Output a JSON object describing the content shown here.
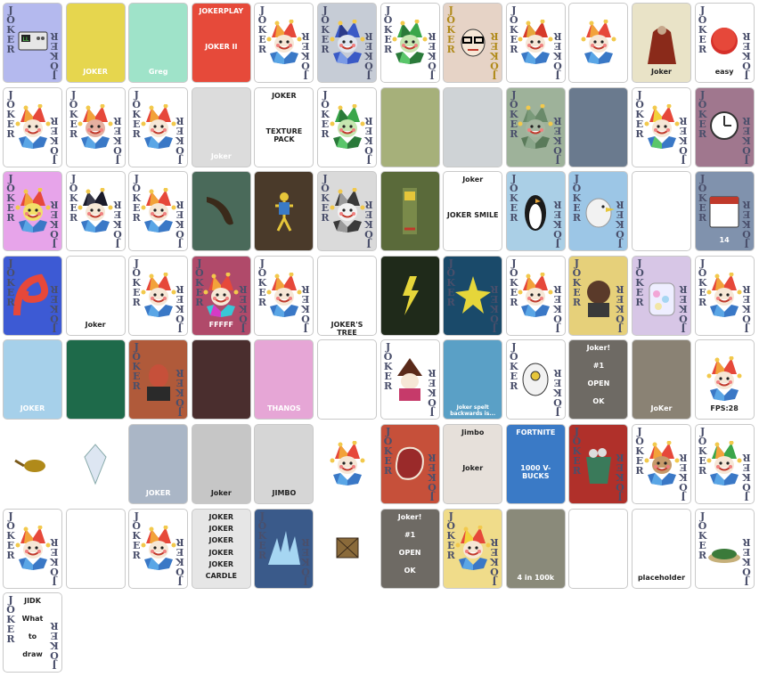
{
  "card_label": "JOKER",
  "cards": [
    {
      "name": "joker-card-1",
      "bg": "#b4b9ee",
      "style": "label",
      "icon": "clock-device"
    },
    {
      "name": "joker-card-2",
      "bg": "#e6d64e",
      "style": "scene",
      "icon": "jester-chair",
      "texts": [
        "JOKER"
      ]
    },
    {
      "name": "joker-card-3",
      "bg": "#9fe3c9",
      "style": "scene",
      "icon": "jester-greg",
      "texts": [
        "Greg"
      ]
    },
    {
      "name": "joker-card-4",
      "bg": "#e64a3a",
      "style": "scene",
      "icon": "jester-poster",
      "texts": [
        "JOKERPLAY",
        "JOKER II"
      ]
    },
    {
      "name": "joker-card-5",
      "bg": "#ffffff",
      "style": "label",
      "icon": "jester"
    },
    {
      "name": "joker-card-6",
      "bg": "#c6ccd6",
      "style": "label",
      "icon": "jester-blue"
    },
    {
      "name": "joker-card-7",
      "bg": "#ffffff",
      "style": "label",
      "icon": "jester-green"
    },
    {
      "name": "joker-card-8",
      "bg": "#e6d3c6",
      "style": "label-gold",
      "icon": "nerd-face"
    },
    {
      "name": "joker-card-9",
      "bg": "#ffffff",
      "style": "label",
      "icon": "jester-hat"
    },
    {
      "name": "joker-card-10",
      "bg": "#ffffff",
      "style": "plain",
      "icon": "jester-bust"
    },
    {
      "name": "joker-card-11",
      "bg": "#e9e3c7",
      "style": "scene",
      "icon": "cloaked-figure",
      "texts": [
        "Joker"
      ]
    },
    {
      "name": "joker-card-12",
      "bg": "#ffffff",
      "style": "label",
      "icon": "easy-button",
      "texts": [
        "easy"
      ]
    },
    {
      "name": "joker-card-13",
      "bg": "#ffffff",
      "style": "label",
      "icon": "jester-red"
    },
    {
      "name": "joker-card-14",
      "bg": "#ffffff",
      "style": "label",
      "icon": "jester-face"
    },
    {
      "name": "joker-card-15",
      "bg": "#ffffff",
      "style": "label",
      "icon": "jester-smile"
    },
    {
      "name": "joker-card-16",
      "bg": "#dcdcdc",
      "style": "scene",
      "icon": "band-photo",
      "texts": [
        "Joker"
      ]
    },
    {
      "name": "joker-card-17",
      "bg": "#ffffff",
      "style": "scene",
      "icon": "jester-logo",
      "texts": [
        "JOKER",
        "TEXTURE PACK"
      ]
    },
    {
      "name": "joker-card-18",
      "bg": "#ffffff",
      "style": "label",
      "icon": "jester-green"
    },
    {
      "name": "joker-card-19",
      "bg": "#a6b07a",
      "style": "scene",
      "icon": "jester-door"
    },
    {
      "name": "joker-card-20",
      "bg": "#cfd3d6",
      "style": "scene",
      "icon": "man-face"
    },
    {
      "name": "joker-card-21",
      "bg": "#9eb29a",
      "style": "label",
      "icon": "jester-dim"
    },
    {
      "name": "joker-card-22",
      "bg": "#6a7a8e",
      "style": "scene",
      "icon": "street-photo"
    },
    {
      "name": "joker-card-23",
      "bg": "#ffffff",
      "style": "label",
      "icon": "jester-rainbow"
    },
    {
      "name": "joker-card-24",
      "bg": "#a0778e",
      "style": "label",
      "icon": "wall-clock"
    },
    {
      "name": "joker-card-25",
      "bg": "#e7a4ea",
      "style": "label",
      "icon": "jester-goofy"
    },
    {
      "name": "joker-card-26",
      "bg": "#ffffff",
      "style": "label",
      "icon": "police-jester"
    },
    {
      "name": "joker-card-27",
      "bg": "#ffffff",
      "style": "label",
      "icon": "jester-beard"
    },
    {
      "name": "joker-card-28",
      "bg": "#4a6a5a",
      "style": "scene",
      "icon": "banana"
    },
    {
      "name": "joker-card-29",
      "bg": "#4a3a2a",
      "style": "scene",
      "icon": "stick-figure"
    },
    {
      "name": "joker-card-30",
      "bg": "#dadada",
      "style": "label",
      "icon": "jester-bw"
    },
    {
      "name": "joker-card-31",
      "bg": "#5a6a3a",
      "style": "scene",
      "icon": "pillar"
    },
    {
      "name": "joker-card-32",
      "bg": "#ffffff",
      "style": "scene",
      "icon": "jester-pills",
      "texts": [
        "Joker",
        "JOKER SMILE"
      ]
    },
    {
      "name": "joker-card-33",
      "bg": "#aacfe6",
      "style": "label",
      "icon": "penguin"
    },
    {
      "name": "joker-card-34",
      "bg": "#9cc6e6",
      "style": "label",
      "icon": "seagull"
    },
    {
      "name": "joker-card-35",
      "bg": "#ffffff",
      "style": "scene",
      "icon": "jester-smoke"
    },
    {
      "name": "joker-card-36",
      "bg": "#8092ad",
      "style": "label",
      "icon": "calendar",
      "texts": [
        "14"
      ]
    },
    {
      "name": "joker-card-37",
      "bg": "#3d5ad4",
      "style": "label",
      "icon": "swirl"
    },
    {
      "name": "joker-card-38",
      "bg": "#ffffff",
      "style": "scene",
      "icon": "alarm-clock",
      "texts": [
        "Joker"
      ]
    },
    {
      "name": "joker-card-39",
      "bg": "#ffffff",
      "style": "label",
      "icon": "jester-sad"
    },
    {
      "name": "joker-card-40",
      "bg": "#b04a6a",
      "style": "label",
      "icon": "jester-glitch",
      "texts": [
        "FFFFF"
      ]
    },
    {
      "name": "joker-card-41",
      "bg": "#ffffff",
      "style": "label",
      "icon": "jester-blue2"
    },
    {
      "name": "joker-card-42",
      "bg": "#ffffff",
      "style": "scene",
      "icon": "family-tree",
      "texts": [
        "JOKER'S TREE"
      ]
    },
    {
      "name": "joker-card-43",
      "bg": "#1f2a1a",
      "style": "scene",
      "icon": "lightning"
    },
    {
      "name": "joker-card-44",
      "bg": "#1a4a6a",
      "style": "label",
      "icon": "yellow-star"
    },
    {
      "name": "joker-card-45",
      "bg": "#ffffff",
      "style": "label",
      "icon": "jester-many"
    },
    {
      "name": "joker-card-46",
      "bg": "#e6d07a",
      "style": "label",
      "icon": "man-photo"
    },
    {
      "name": "joker-card-47",
      "bg": "#d7c6e6",
      "style": "label",
      "icon": "candy-jar"
    },
    {
      "name": "joker-card-48",
      "bg": "#ffffff",
      "style": "label",
      "icon": "jester-gray"
    },
    {
      "name": "joker-card-49",
      "bg": "#a6d0ea",
      "style": "scene",
      "icon": "man-cartoon",
      "texts": [
        "JOKER"
      ]
    },
    {
      "name": "joker-card-50",
      "bg": "#1e6a4a",
      "style": "scene",
      "icon": "ornament-card"
    },
    {
      "name": "joker-card-51",
      "bg": "#b05a3a",
      "style": "label",
      "icon": "red-man"
    },
    {
      "name": "joker-card-52",
      "bg": "#4a2e2e",
      "style": "scene",
      "icon": "code-text"
    },
    {
      "name": "joker-card-53",
      "bg": "#e6a6d6",
      "style": "scene",
      "icon": "marble",
      "texts": [
        "THANOS"
      ]
    },
    {
      "name": "joker-card-54",
      "bg": "#ffffff",
      "style": "scene",
      "icon": "wavy-lines"
    },
    {
      "name": "joker-card-55",
      "bg": "#ffffff",
      "style": "label",
      "icon": "wizard"
    },
    {
      "name": "joker-card-56",
      "bg": "#5aa0c6",
      "style": "scene",
      "icon": "jester-speech",
      "texts": [
        "Joker spelt backwards is..."
      ]
    },
    {
      "name": "joker-card-57",
      "bg": "#ffffff",
      "style": "label",
      "icon": "cyclops"
    },
    {
      "name": "joker-card-58",
      "bg": "#6e6a64",
      "style": "scene",
      "icon": "joker-window",
      "texts": [
        "Joker!",
        "#1",
        "OPEN",
        "OK"
      ]
    },
    {
      "name": "joker-card-59",
      "bg": "#8a8274",
      "style": "scene",
      "icon": "scribble",
      "texts": [
        "JoKer"
      ]
    },
    {
      "name": "joker-card-60",
      "bg": "#ffffff",
      "style": "scene",
      "icon": "jester-fps",
      "texts": [
        "FPS:28"
      ]
    },
    {
      "name": "joker-card-61",
      "bg": "#ffffff",
      "style": "bare",
      "icon": "pan"
    },
    {
      "name": "joker-card-62",
      "bg": "#ffffff",
      "style": "bare",
      "icon": "diamond"
    },
    {
      "name": "joker-card-63",
      "bg": "#aab6c6",
      "style": "scene",
      "icon": "blue-grid",
      "texts": [
        "JOKER"
      ]
    },
    {
      "name": "joker-card-64",
      "bg": "#c6c6c6",
      "style": "scene",
      "icon": "crt-monitor",
      "texts": [
        "Joker"
      ]
    },
    {
      "name": "joker-card-65",
      "bg": "#d6d6d6",
      "style": "scene",
      "icon": "marble-gray",
      "texts": [
        "JIMBO"
      ]
    },
    {
      "name": "joker-card-66",
      "bg": "#ffffff",
      "style": "bare",
      "icon": "jester-small"
    },
    {
      "name": "joker-card-67",
      "bg": "#c6503a",
      "style": "label",
      "icon": "steak"
    },
    {
      "name": "joker-card-68",
      "bg": "#e6e0da",
      "style": "scene",
      "icon": "two-men",
      "texts": [
        "Jimbo",
        "Joker"
      ]
    },
    {
      "name": "joker-card-69",
      "bg": "#3a7ac6",
      "style": "scene",
      "icon": "fortnite",
      "texts": [
        "FORTNITE",
        "1000 V-BUCKS"
      ]
    },
    {
      "name": "joker-card-70",
      "bg": "#b0302a",
      "style": "label",
      "icon": "bucket"
    },
    {
      "name": "joker-card-71",
      "bg": "#ffffff",
      "style": "label",
      "icon": "jester-brown"
    },
    {
      "name": "joker-card-72",
      "bg": "#ffffff",
      "style": "label",
      "icon": "jester-greenhat"
    },
    {
      "name": "joker-card-73",
      "bg": "#ffffff",
      "style": "label",
      "icon": "jester-fire"
    },
    {
      "name": "joker-card-74",
      "bg": "#ffffff",
      "style": "scene",
      "icon": "screenshot-doc"
    },
    {
      "name": "joker-card-75",
      "bg": "#ffffff",
      "style": "label",
      "icon": "jester-red2"
    },
    {
      "name": "joker-card-76",
      "bg": "#e6e6e6",
      "style": "scene",
      "icon": "joker-grid",
      "texts": [
        "JOKER",
        "JOKER",
        "JOKER",
        "JOKER",
        "JOKER",
        "CARDLE"
      ]
    },
    {
      "name": "joker-card-77",
      "bg": "#3a5a8a",
      "style": "label",
      "icon": "splash"
    },
    {
      "name": "joker-card-78",
      "bg": "#ffffff",
      "style": "bare",
      "icon": "crate"
    },
    {
      "name": "joker-card-79",
      "bg": "#6e6a64",
      "style": "scene",
      "icon": "joker-window",
      "texts": [
        "Joker!",
        "#1",
        "OPEN",
        "OK"
      ]
    },
    {
      "name": "joker-card-80",
      "bg": "#f0dc8a",
      "style": "label",
      "icon": "jester-crown"
    },
    {
      "name": "joker-card-81",
      "bg": "#8a8a7a",
      "style": "scene",
      "icon": "slot-machine",
      "texts": [
        "4 in 100k"
      ]
    },
    {
      "name": "joker-card-82",
      "bg": "#ffffff",
      "style": "scene",
      "icon": "scatter-cards"
    },
    {
      "name": "joker-card-83",
      "bg": "#ffffff",
      "style": "scene",
      "icon": "question-mark",
      "texts": [
        "placeholder"
      ]
    },
    {
      "name": "joker-card-84",
      "bg": "#ffffff",
      "style": "label",
      "icon": "salad-bowl"
    },
    {
      "name": "joker-card-85",
      "bg": "#ffffff",
      "style": "label",
      "icon": "handwriting",
      "texts": [
        "JIDK",
        "What",
        "to",
        "draw"
      ]
    }
  ]
}
